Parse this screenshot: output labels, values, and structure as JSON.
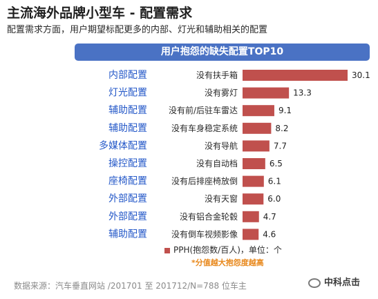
{
  "header": {
    "title": "主流海外品牌小型车 - 配置需求",
    "subtitle": "配置需求方面，用户期望标配更多的内部、灯光和辅助相关的配置"
  },
  "banner": {
    "text": "用户抱怨的缺失配置TOP10"
  },
  "legend": {
    "label": "PPH(抱怨数/百人)，单位：个"
  },
  "note": "*分值越大抱怨度越高",
  "source": "数据来源：汽车垂直网站 /201701 至 201712/N=788 位车主",
  "watermark": {
    "text": "中科点击",
    "icon": "wechat-icon"
  },
  "colors": {
    "bar": "#c0504d",
    "category": "#2458c8",
    "banner": "#4a72c4",
    "note": "#e8881c"
  },
  "chart_data": {
    "type": "bar",
    "orientation": "horizontal",
    "title": "用户抱怨的缺失配置TOP10",
    "groups": [
      "内部配置",
      "灯光配置",
      "辅助配置",
      "辅助配置",
      "多媒体配置",
      "操控配置",
      "座椅配置",
      "外部配置",
      "外部配置",
      "辅助配置"
    ],
    "categories": [
      "没有扶手箱",
      "没有雾灯",
      "没有前/后驻车雷达",
      "没有车身稳定系统",
      "没有导航",
      "没有自动档",
      "没有后排座椅放倒",
      "没有天窗",
      "没有铝合金轮毂",
      "没有倒车视频影像"
    ],
    "series": [
      {
        "name": "PPH(抱怨数/百人)",
        "values": [
          30.1,
          13.3,
          9.1,
          8.2,
          7.7,
          6.5,
          6.1,
          6.0,
          4.7,
          4.6
        ]
      }
    ],
    "value_labels": [
      "30.1",
      "13.3",
      "9.1",
      "8.2",
      "7.7",
      "6.5",
      "6.1",
      "6.0",
      "4.7",
      "4.6"
    ],
    "xlim": [
      0,
      30.1
    ],
    "grid": false,
    "legend_position": "bottom"
  }
}
